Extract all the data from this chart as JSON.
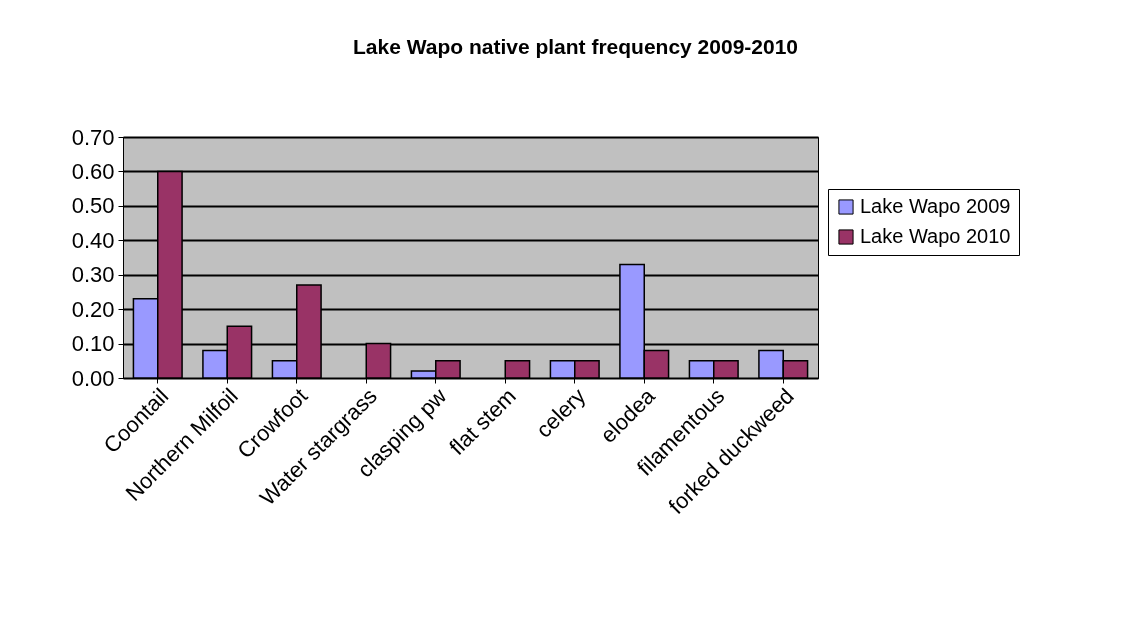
{
  "chart_data": {
    "type": "bar",
    "title": "Lake Wapo native plant frequency 2009-2010",
    "categories": [
      "Coontail",
      "Northern Milfoil",
      "Crowfoot",
      "Water stargrass",
      "clasping pw",
      "flat stem",
      "celery",
      "elodea",
      "filamentous",
      "forked duckweed"
    ],
    "series": [
      {
        "name": "Lake Wapo 2009",
        "color": "#9999ff",
        "values": [
          0.23,
          0.08,
          0.05,
          null,
          0.02,
          null,
          0.05,
          0.33,
          0.05,
          0.08
        ]
      },
      {
        "name": "Lake Wapo 2010",
        "color": "#993366",
        "values": [
          0.6,
          0.15,
          0.27,
          0.1,
          0.05,
          0.05,
          0.05,
          0.08,
          0.05,
          0.05
        ]
      }
    ],
    "ylim": [
      0,
      0.7
    ],
    "yticks": [
      {
        "value": 0,
        "label": "0.00"
      },
      {
        "value": 0.1,
        "label": "0.10"
      },
      {
        "value": 0.2,
        "label": "0.20"
      },
      {
        "value": 0.3,
        "label": "0.30"
      },
      {
        "value": 0.4,
        "label": "0.40"
      },
      {
        "value": 0.5,
        "label": "0.50"
      },
      {
        "value": 0.6,
        "label": "0.60"
      },
      {
        "value": 0.7,
        "label": "0.70"
      }
    ],
    "grid": "y",
    "legend": "right"
  }
}
